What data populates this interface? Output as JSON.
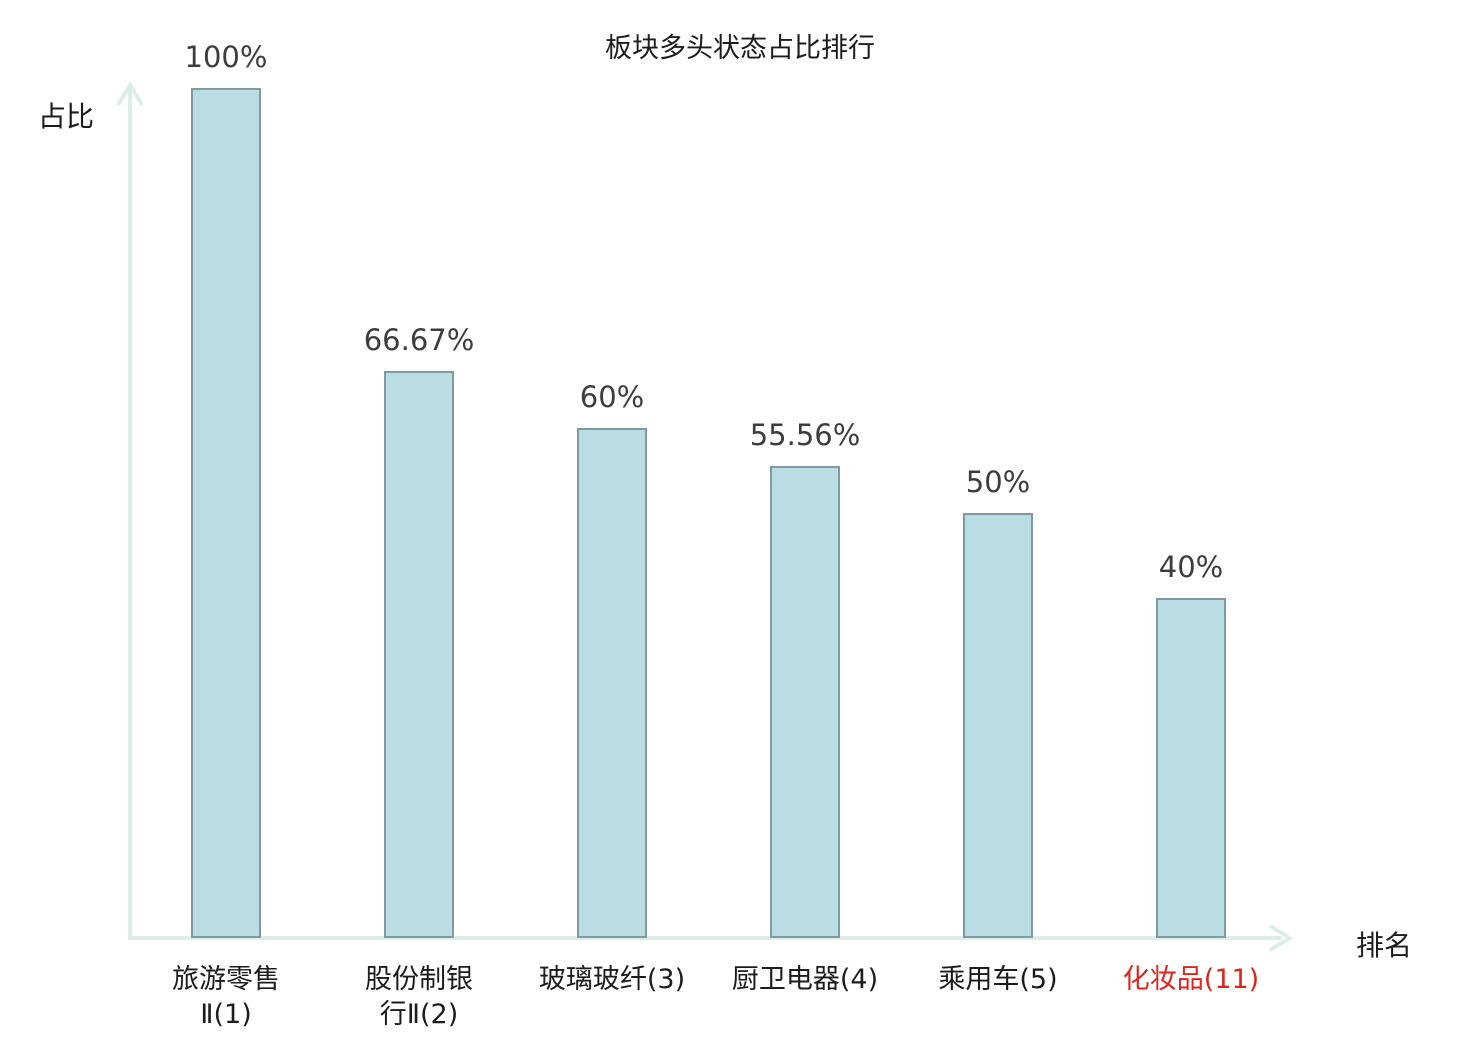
{
  "title": "板块多头状态占比排行",
  "axes": {
    "y_label": "占比",
    "x_label": "排名"
  },
  "colors": {
    "bar_fill": "#b9dde2",
    "bar_border": "#7f9aa1",
    "axis": "#dcedea",
    "text_dark": "#1c1c1c",
    "value_text": "#3d3d3d",
    "highlight": "#e0241c"
  },
  "chart_data": {
    "type": "bar",
    "title": "板块多头状态占比排行",
    "xlabel": "排名",
    "ylabel": "占比",
    "ylim": [
      0,
      100
    ],
    "grid": false,
    "legend_position": "none",
    "categories": [
      "旅游零售Ⅱ(1)",
      "股份制银行Ⅱ(2)",
      "玻璃玻纤(3)",
      "厨卫电器(4)",
      "乘用车(5)",
      "化妆品(11)"
    ],
    "values": [
      100,
      66.67,
      60,
      55.56,
      50,
      40
    ],
    "value_labels": [
      "100%",
      "66.67%",
      "60%",
      "55.56%",
      "50%",
      "40%"
    ],
    "category_display": [
      "旅游零售\nⅡ(1)",
      "股份制银\n行Ⅱ(2)",
      "玻璃玻纤(3)",
      "厨卫电器(4)",
      "乘用车(5)",
      "化妆品(11)"
    ],
    "highlight_index": 5
  }
}
